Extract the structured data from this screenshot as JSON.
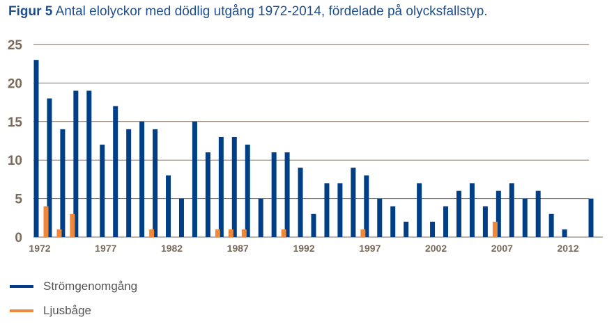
{
  "chart_data": {
    "type": "bar",
    "title_prefix": "Figur 5",
    "title": "Antal elolyckor med dödlig utgång 1972-2014, fördelade på olycksfallstyp.",
    "xlabel": "",
    "ylabel": "",
    "ylim": [
      0,
      25
    ],
    "yticks": [
      0,
      5,
      10,
      15,
      20,
      25
    ],
    "xtick_labels": [
      "1972",
      "1977",
      "1982",
      "1987",
      "1992",
      "1997",
      "2002",
      "2007",
      "2012"
    ],
    "grid": true,
    "legend_position": "bottom-left",
    "categories": [
      1972,
      1973,
      1974,
      1975,
      1976,
      1977,
      1978,
      1979,
      1980,
      1981,
      1982,
      1983,
      1984,
      1985,
      1986,
      1987,
      1988,
      1989,
      1990,
      1991,
      1992,
      1993,
      1994,
      1995,
      1996,
      1997,
      1998,
      1999,
      2000,
      2001,
      2002,
      2003,
      2004,
      2005,
      2006,
      2007,
      2008,
      2009,
      2010,
      2011,
      2012,
      2013,
      2014
    ],
    "series": [
      {
        "name": "Strömgenomgång",
        "color": "#003f86",
        "values": [
          23,
          18,
          14,
          19,
          19,
          12,
          17,
          14,
          15,
          14,
          8,
          5,
          15,
          11,
          13,
          13,
          12,
          5,
          11,
          11,
          9,
          3,
          7,
          7,
          9,
          8,
          5,
          4,
          2,
          7,
          2,
          4,
          6,
          7,
          4,
          6,
          7,
          5,
          6,
          3,
          1,
          0,
          5
        ]
      },
      {
        "name": "Ljusbåge",
        "color": "#f0883a",
        "values": [
          4,
          1,
          3,
          0,
          0,
          0,
          0,
          0,
          1,
          0,
          0,
          0,
          0,
          1,
          1,
          1,
          0,
          0,
          1,
          0,
          0,
          0,
          0,
          0,
          1,
          0,
          0,
          0,
          0,
          0,
          0,
          0,
          0,
          0,
          2,
          0,
          0,
          0,
          0,
          0,
          0,
          0,
          0
        ]
      }
    ]
  }
}
